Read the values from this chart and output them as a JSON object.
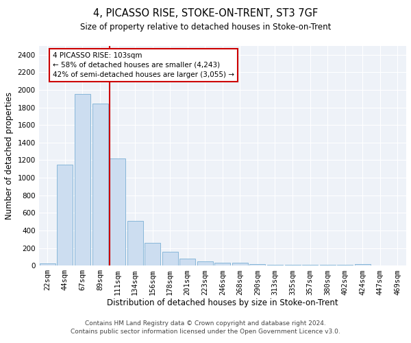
{
  "title": "4, PICASSO RISE, STOKE-ON-TRENT, ST3 7GF",
  "subtitle": "Size of property relative to detached houses in Stoke-on-Trent",
  "xlabel": "Distribution of detached houses by size in Stoke-on-Trent",
  "ylabel": "Number of detached properties",
  "bar_values": [
    25,
    1150,
    1950,
    1840,
    1220,
    510,
    260,
    155,
    80,
    50,
    35,
    35,
    15,
    8,
    5,
    5,
    5,
    5,
    15,
    0,
    0
  ],
  "categories": [
    "22sqm",
    "44sqm",
    "67sqm",
    "89sqm",
    "111sqm",
    "134sqm",
    "156sqm",
    "178sqm",
    "201sqm",
    "223sqm",
    "246sqm",
    "268sqm",
    "290sqm",
    "313sqm",
    "335sqm",
    "357sqm",
    "380sqm",
    "402sqm",
    "424sqm",
    "447sqm",
    "469sqm"
  ],
  "bar_color": "#ccddf0",
  "bar_edge_color": "#7aafd4",
  "vline_color": "#cc0000",
  "annotation_text": "4 PICASSO RISE: 103sqm\n← 58% of detached houses are smaller (4,243)\n42% of semi-detached houses are larger (3,055) →",
  "annotation_box_color": "#ffffff",
  "annotation_box_edge": "#cc0000",
  "ylim": [
    0,
    2500
  ],
  "yticks": [
    0,
    200,
    400,
    600,
    800,
    1000,
    1200,
    1400,
    1600,
    1800,
    2000,
    2200,
    2400
  ],
  "bg_color": "#eef2f8",
  "grid_color": "#ffffff",
  "footer": "Contains HM Land Registry data © Crown copyright and database right 2024.\nContains public sector information licensed under the Open Government Licence v3.0.",
  "title_fontsize": 10.5,
  "subtitle_fontsize": 8.5,
  "xlabel_fontsize": 8.5,
  "ylabel_fontsize": 8.5,
  "tick_fontsize": 7.5,
  "footer_fontsize": 6.5,
  "annotation_fontsize": 7.5,
  "vline_xindex": 3.55
}
